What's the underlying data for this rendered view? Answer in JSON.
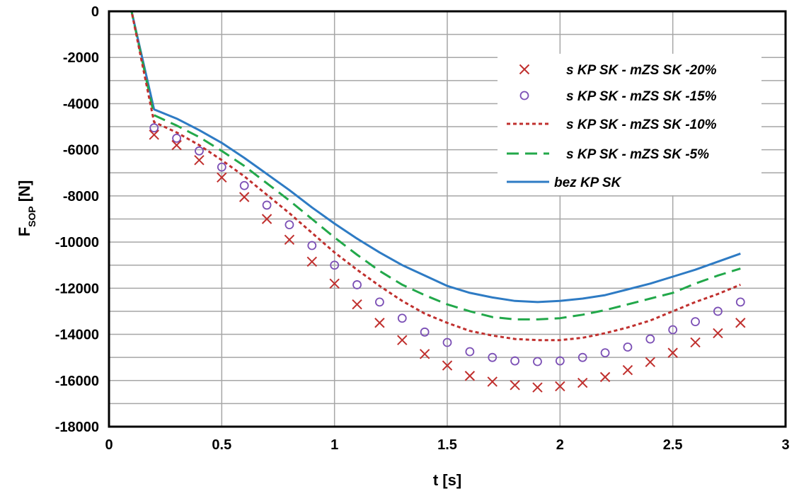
{
  "chart_data": {
    "type": "line",
    "xlabel": "t [s]",
    "ylabel": {
      "main": "F",
      "sub": "SOP",
      "unit": "[N]"
    },
    "xlim": [
      0,
      3
    ],
    "ylim": [
      -18000,
      0
    ],
    "x_ticks": [
      0,
      0.5,
      1,
      1.5,
      2,
      2.5,
      3
    ],
    "x_tick_labels": [
      "0",
      "0.5",
      "1",
      "1.5",
      "2",
      "2.5",
      "3"
    ],
    "y_ticks": [
      0,
      -2000,
      -4000,
      -6000,
      -8000,
      -10000,
      -12000,
      -14000,
      -16000,
      -18000
    ],
    "y_tick_labels": [
      "0",
      "-2000",
      "-4000",
      "-6000",
      "-8000",
      "-10000",
      "-12000",
      "-14000",
      "-16000",
      "-18000"
    ],
    "grid": true,
    "legend_position": "top-right",
    "series": [
      {
        "name": "s KP SK - mZS SK -20%",
        "style": "marker-x",
        "color": "#C0302E",
        "x": [
          0.2,
          0.3,
          0.4,
          0.5,
          0.6,
          0.7,
          0.8,
          0.9,
          1.0,
          1.1,
          1.2,
          1.3,
          1.4,
          1.5,
          1.6,
          1.7,
          1.8,
          1.9,
          2.0,
          2.1,
          2.2,
          2.3,
          2.4,
          2.5,
          2.6,
          2.7,
          2.8
        ],
        "y": [
          -5350,
          -5800,
          -6450,
          -7200,
          -8050,
          -9000,
          -9900,
          -10850,
          -11800,
          -12700,
          -13500,
          -14250,
          -14850,
          -15350,
          -15800,
          -16050,
          -16200,
          -16300,
          -16250,
          -16100,
          -15850,
          -15550,
          -15200,
          -14800,
          -14350,
          -13950,
          -13500
        ]
      },
      {
        "name": "s KP SK - mZS SK -15%",
        "style": "marker-circle",
        "color": "#7B4FB5",
        "x": [
          0.2,
          0.3,
          0.4,
          0.5,
          0.6,
          0.7,
          0.8,
          0.9,
          1.0,
          1.1,
          1.2,
          1.3,
          1.4,
          1.5,
          1.6,
          1.7,
          1.8,
          1.9,
          2.0,
          2.1,
          2.2,
          2.3,
          2.4,
          2.5,
          2.6,
          2.7,
          2.8
        ],
        "y": [
          -5050,
          -5500,
          -6050,
          -6750,
          -7550,
          -8400,
          -9250,
          -10150,
          -11000,
          -11850,
          -12600,
          -13300,
          -13900,
          -14350,
          -14750,
          -15000,
          -15150,
          -15180,
          -15150,
          -15000,
          -14800,
          -14550,
          -14200,
          -13800,
          -13450,
          -13000,
          -12600
        ]
      },
      {
        "name": "s KP SK - mZS SK -10%",
        "style": "dotted",
        "color": "#C0302E",
        "x": [
          0,
          0.1,
          0.2,
          0.3,
          0.4,
          0.5,
          0.6,
          0.7,
          0.8,
          0.9,
          1.0,
          1.1,
          1.2,
          1.3,
          1.4,
          1.5,
          1.6,
          1.7,
          1.8,
          1.9,
          2.0,
          2.1,
          2.2,
          2.3,
          2.4,
          2.5,
          2.6,
          2.7,
          2.8
        ],
        "y": [
          0,
          0,
          -4800,
          -5250,
          -5800,
          -6450,
          -7150,
          -7950,
          -8750,
          -9600,
          -10450,
          -11200,
          -11900,
          -12550,
          -13100,
          -13500,
          -13850,
          -14050,
          -14200,
          -14250,
          -14250,
          -14150,
          -13950,
          -13700,
          -13400,
          -13000,
          -12600,
          -12250,
          -11850
        ]
      },
      {
        "name": "s KP SK - mZS SK -5%",
        "style": "dashed",
        "color": "#22A84A",
        "x": [
          0,
          0.1,
          0.2,
          0.3,
          0.4,
          0.5,
          0.6,
          0.7,
          0.8,
          0.9,
          1.0,
          1.1,
          1.2,
          1.3,
          1.4,
          1.5,
          1.6,
          1.7,
          1.8,
          1.9,
          2.0,
          2.1,
          2.2,
          2.3,
          2.4,
          2.5,
          2.6,
          2.7,
          2.8
        ],
        "y": [
          0,
          0,
          -4500,
          -4950,
          -5450,
          -6050,
          -6700,
          -7450,
          -8200,
          -9000,
          -9800,
          -10550,
          -11250,
          -11850,
          -12300,
          -12700,
          -13000,
          -13250,
          -13350,
          -13350,
          -13300,
          -13150,
          -12950,
          -12700,
          -12450,
          -12200,
          -11800,
          -11450,
          -11150
        ]
      },
      {
        "name": "bez KP SK",
        "style": "solid",
        "color": "#2E7BC4",
        "x": [
          0,
          0.1,
          0.2,
          0.3,
          0.4,
          0.5,
          0.6,
          0.7,
          0.8,
          0.9,
          1.0,
          1.1,
          1.2,
          1.3,
          1.4,
          1.5,
          1.6,
          1.7,
          1.8,
          1.9,
          2.0,
          2.1,
          2.2,
          2.3,
          2.4,
          2.5,
          2.6,
          2.7,
          2.8
        ],
        "y": [
          0,
          0,
          -4250,
          -4650,
          -5150,
          -5700,
          -6350,
          -7050,
          -7750,
          -8500,
          -9200,
          -9850,
          -10450,
          -11000,
          -11450,
          -11900,
          -12200,
          -12400,
          -12550,
          -12600,
          -12550,
          -12450,
          -12300,
          -12050,
          -11800,
          -11500,
          -11200,
          -10850,
          -10500
        ]
      }
    ]
  }
}
